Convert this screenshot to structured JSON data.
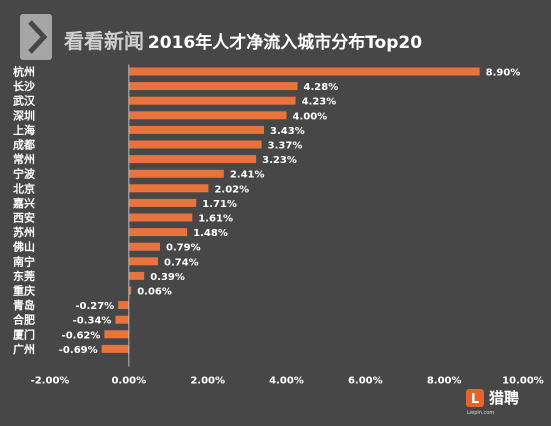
{
  "chart_data": {
    "type": "bar",
    "orientation": "horizontal",
    "title": "2016年人才净流入城市分布Top20",
    "categories": [
      "杭州",
      "长沙",
      "武汉",
      "深圳",
      "上海",
      "成都",
      "常州",
      "宁波",
      "北京",
      "嘉兴",
      "西安",
      "苏州",
      "佛山",
      "南宁",
      "东莞",
      "重庆",
      "青岛",
      "合肥",
      "厦门",
      "广州"
    ],
    "values": [
      8.9,
      4.28,
      4.23,
      4.0,
      3.43,
      3.37,
      3.23,
      2.41,
      2.02,
      1.71,
      1.61,
      1.48,
      0.79,
      0.74,
      0.39,
      0.06,
      -0.27,
      -0.34,
      -0.62,
      -0.69
    ],
    "value_labels": [
      "8.90%",
      "4.28%",
      "4.23%",
      "4.00%",
      "3.43%",
      "3.37%",
      "3.23%",
      "2.41%",
      "2.02%",
      "1.71%",
      "1.61%",
      "1.48%",
      "0.79%",
      "0.74%",
      "0.39%",
      "0.06%",
      "-0.27%",
      "-0.34%",
      "-0.62%",
      "-0.69%"
    ],
    "xlim": [
      -2,
      10
    ],
    "xticks": [
      -2,
      0,
      2,
      4,
      6,
      8,
      10
    ],
    "xtick_labels": [
      "-2.00%",
      "0.00%",
      "2.00%",
      "4.00%",
      "6.00%",
      "8.00%",
      "10.00%"
    ],
    "bar_color": "#e8733c",
    "grid": false
  },
  "watermark": {
    "text": "看看新闻"
  },
  "brand": {
    "name": "猎聘",
    "sub": "Liepin.com",
    "color": "#e8622c"
  }
}
